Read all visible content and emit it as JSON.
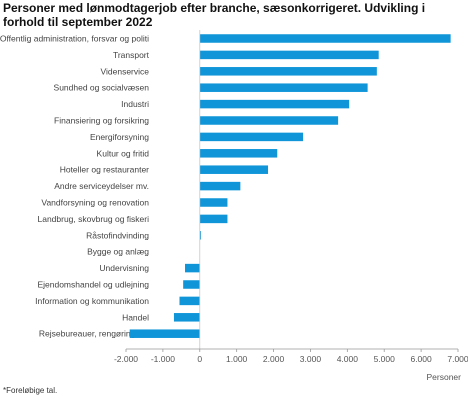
{
  "title": "Personer med lønmodtagerjob efter branche, sæsonkorrigeret. Udvikling i forhold til september 2022",
  "footnote": "*Foreløbige tal.",
  "colors": {
    "bar": "#0f95d8",
    "axis": "#999999",
    "tick_text": "#555555",
    "label_text": "#444444"
  },
  "chart_data": {
    "type": "bar",
    "orientation": "horizontal",
    "title": "Personer med lønmodtagerjob efter branche, sæsonkorrigeret. Udvikling i forhold til september 2022",
    "xlabel": "Personer",
    "ylabel": "",
    "xlim": [
      -2000,
      7000
    ],
    "xticks": [
      -2000,
      -1000,
      0,
      1000,
      2000,
      3000,
      4000,
      5000,
      6000,
      7000
    ],
    "xtick_labels": [
      "-2.000",
      "-1.000",
      "0",
      "1.000",
      "2.000",
      "3.000",
      "4.000",
      "5.000",
      "6.000",
      "7.000"
    ],
    "grid": false,
    "categories": [
      "Offentlig administration, forsvar og politi",
      "Transport",
      "Videnservice",
      "Sundhed og socialvæsen",
      "Industri",
      "Finansiering og forsikring",
      "Energiforsyning",
      "Kultur og fritid",
      "Hoteller og restauranter",
      "Andre serviceydelser mv.",
      "Vandforsyning og renovation",
      "Landbrug, skovbrug og fiskeri",
      "Råstofindvinding",
      "Bygge og anlæg",
      "Undervisning",
      "Ejendomshandel og udlejning",
      "Information og kommunikation",
      "Handel",
      "Rejsebureauer, rengøring o.l."
    ],
    "values": [
      6800,
      4850,
      4800,
      4550,
      4050,
      3750,
      2800,
      2100,
      1850,
      1100,
      750,
      750,
      30,
      0,
      -400,
      -450,
      -550,
      -700,
      -1900
    ]
  }
}
